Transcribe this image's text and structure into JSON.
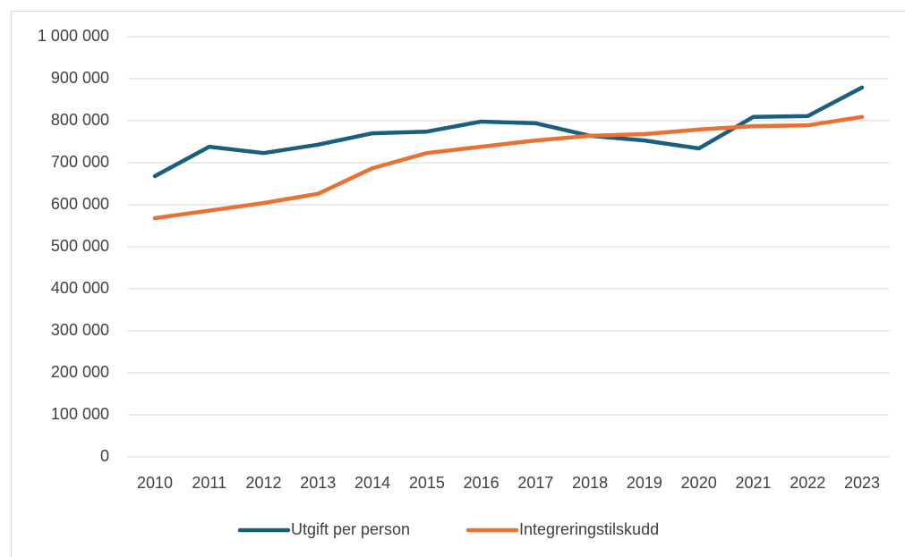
{
  "chart_data": {
    "type": "line",
    "categories": [
      "2010",
      "2011",
      "2012",
      "2013",
      "2014",
      "2015",
      "2016",
      "2017",
      "2018",
      "2019",
      "2020",
      "2021",
      "2022",
      "2023"
    ],
    "series": [
      {
        "name": "Utgift per person",
        "color": "#1a5f7e",
        "values": [
          668000,
          738000,
          723000,
          743000,
          770000,
          774000,
          798000,
          794000,
          764000,
          753000,
          734000,
          809000,
          811000,
          879000
        ]
      },
      {
        "name": "Integreringstilskudd",
        "color": "#e97132",
        "values": [
          568000,
          586000,
          604000,
          626000,
          687000,
          723000,
          738000,
          753000,
          764000,
          768000,
          779000,
          787000,
          789000,
          809000
        ]
      }
    ],
    "ylim": [
      0,
      1000000
    ],
    "yticks": [
      0,
      {
        "value": 100000,
        "label": "100 000"
      },
      {
        "value": 200000,
        "label": "200 000"
      },
      {
        "value": 300000,
        "label": "300 000"
      },
      {
        "value": 400000,
        "label": "400 000"
      },
      {
        "value": 500000,
        "label": "500 000"
      },
      {
        "value": 600000,
        "label": "600 000"
      },
      {
        "value": 700000,
        "label": "700 000"
      },
      {
        "value": 800000,
        "label": "800 000"
      },
      {
        "value": 900000,
        "label": "900 000"
      },
      {
        "value": 1000000,
        "label": "1 000 000"
      }
    ],
    "grid": true,
    "legend": "bottom"
  }
}
